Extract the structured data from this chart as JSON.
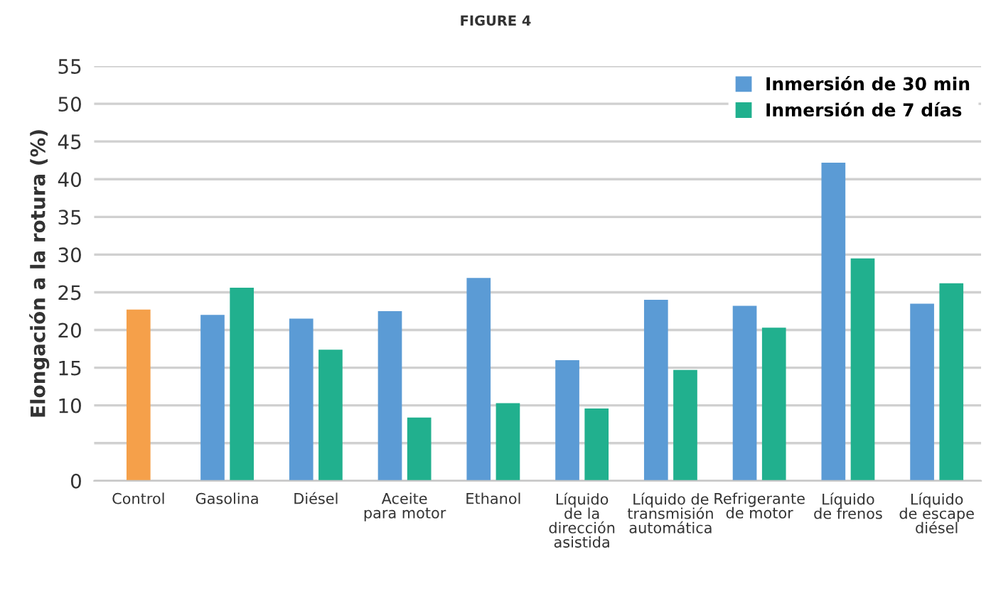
{
  "chart_data": {
    "type": "bar",
    "title": "FIGURE 4",
    "ylabel": "Elongación a la rotura (%)",
    "categories": [
      "Control",
      "Gasolina",
      "Diésel",
      "Aceite\npara motor",
      "Ethanol",
      "Líquido\nde la\ndirección\nasistida",
      "Líquido de\ntransmisión\nautomática",
      "Refrigerante\nde motor",
      "Líquido\nde frenos",
      "Líquido\nde escape\ndiésel"
    ],
    "series": [
      {
        "color": "#f5a04a",
        "values": [
          22.7,
          null,
          null,
          null,
          null,
          null,
          null,
          null,
          null,
          null
        ]
      },
      {
        "name": "Inmersión de 30 min",
        "color": "#5b9bd5",
        "values": [
          null,
          22.0,
          21.5,
          22.5,
          26.9,
          16.0,
          24.0,
          23.2,
          42.2,
          23.5
        ]
      },
      {
        "name": "Inmersión de 7 días",
        "color": "#21b08e",
        "values": [
          null,
          25.6,
          17.4,
          8.4,
          10.3,
          9.6,
          14.7,
          20.3,
          29.5,
          26.2
        ]
      }
    ],
    "ylim": [
      0,
      55
    ],
    "yticks": [
      0,
      {
        "value": 5,
        "label": null
      },
      10,
      15,
      20,
      25,
      30,
      35,
      40,
      45,
      50,
      55
    ],
    "grid": "y",
    "legend": "top right"
  }
}
